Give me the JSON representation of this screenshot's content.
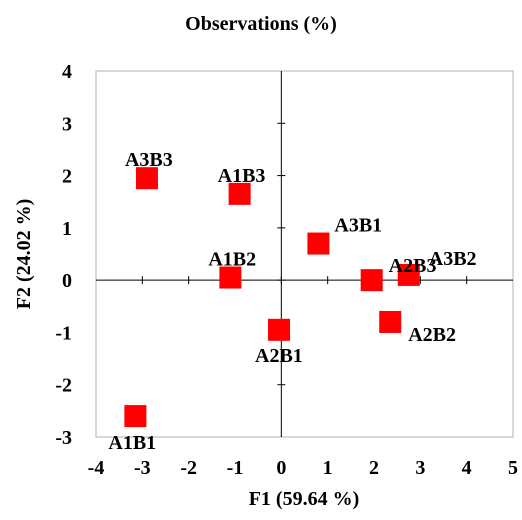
{
  "chart_data": {
    "type": "scatter",
    "title": "Observations (%)",
    "xlabel": "F1 (59.64 %)",
    "ylabel": "F2 (24.02 %)",
    "xlim": [
      -4,
      5
    ],
    "ylim": [
      -3,
      4
    ],
    "xticks": [
      "-4",
      "-3",
      "-2",
      "-1",
      "0",
      "1",
      "2",
      "3",
      "4",
      "5"
    ],
    "yticks": [
      "-3",
      "-2",
      "-1",
      "0",
      "1",
      "2",
      "3",
      "4"
    ],
    "grid": false,
    "marker_color": "#ff0000",
    "marker": "square",
    "points": [
      {
        "label": "A1B1",
        "x": -3.15,
        "y": -2.6
      },
      {
        "label": "A1B2",
        "x": -1.1,
        "y": 0.05
      },
      {
        "label": "A1B3",
        "x": -0.9,
        "y": 1.65
      },
      {
        "label": "A2B1",
        "x": -0.05,
        "y": -0.95
      },
      {
        "label": "A2B2",
        "x": 2.35,
        "y": -0.8
      },
      {
        "label": "A2B3",
        "x": 1.95,
        "y": 0.0
      },
      {
        "label": "A3B1",
        "x": 0.8,
        "y": 0.7
      },
      {
        "label": "A3B2",
        "x": 2.75,
        "y": 0.1
      },
      {
        "label": "A3B3",
        "x": -2.9,
        "y": 1.95
      }
    ]
  }
}
